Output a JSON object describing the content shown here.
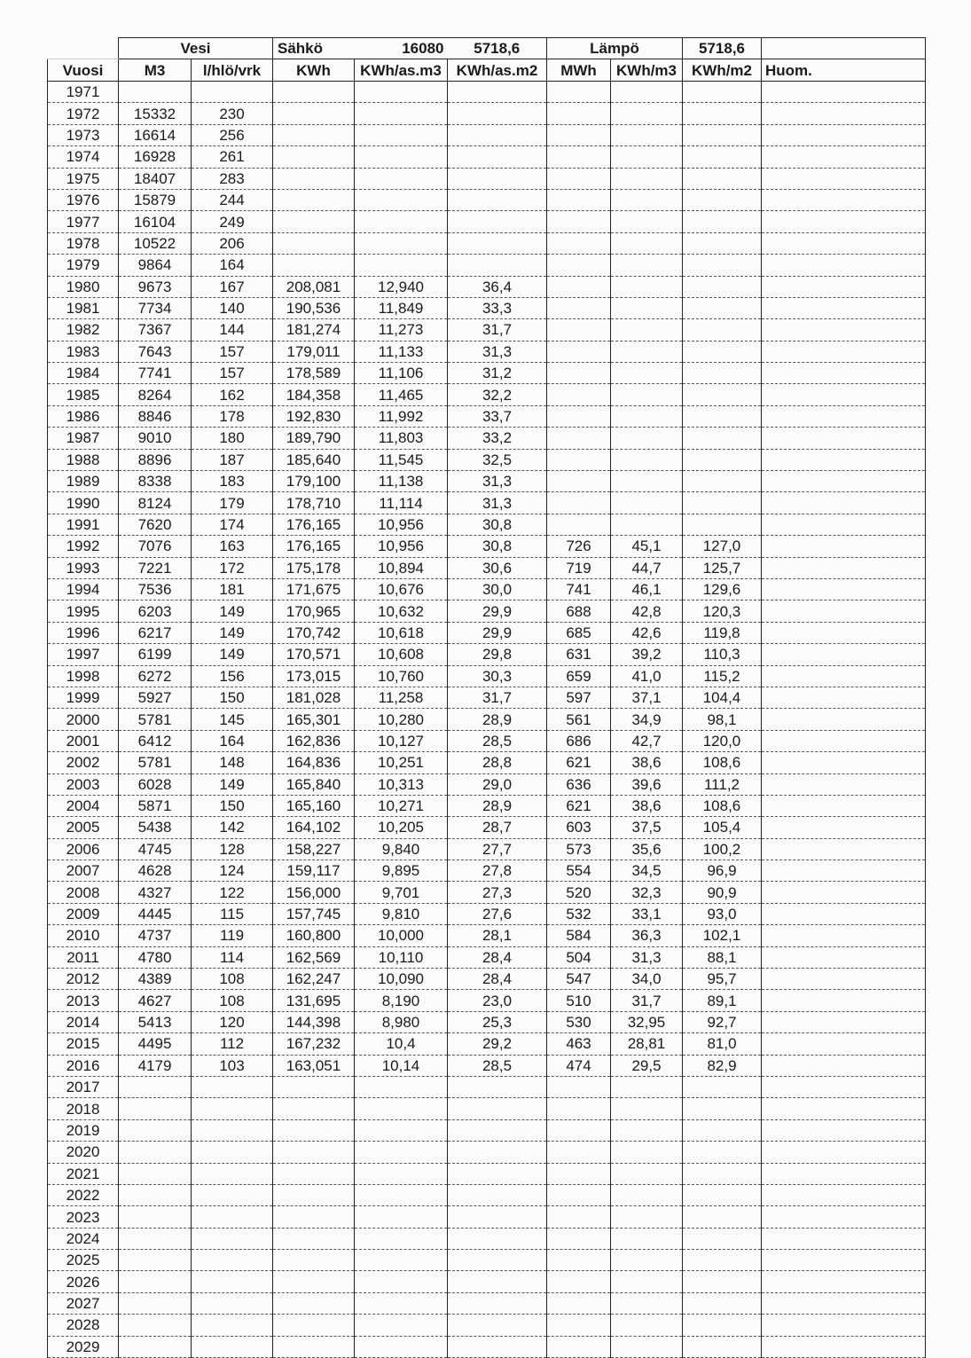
{
  "header_row1": {
    "vesi": "Vesi",
    "sahko": "Sähkö",
    "sahko_v1": "16080",
    "sahko_v2": "5718,6",
    "lampo": "Lämpö",
    "lampo_v": "5718,6"
  },
  "header_row2": [
    "Vuosi",
    "M3",
    "l/hlö/vrk",
    "KWh",
    "KWh/as.m3",
    "KWh/as.m2",
    "MWh",
    "KWh/m3",
    "KWh/m2",
    "Huom."
  ],
  "rows": [
    [
      "1971",
      "",
      "",
      "",
      "",
      "",
      "",
      "",
      "",
      ""
    ],
    [
      "1972",
      "15332",
      "230",
      "",
      "",
      "",
      "",
      "",
      "",
      ""
    ],
    [
      "1973",
      "16614",
      "256",
      "",
      "",
      "",
      "",
      "",
      "",
      ""
    ],
    [
      "1974",
      "16928",
      "261",
      "",
      "",
      "",
      "",
      "",
      "",
      ""
    ],
    [
      "1975",
      "18407",
      "283",
      "",
      "",
      "",
      "",
      "",
      "",
      ""
    ],
    [
      "1976",
      "15879",
      "244",
      "",
      "",
      "",
      "",
      "",
      "",
      ""
    ],
    [
      "1977",
      "16104",
      "249",
      "",
      "",
      "",
      "",
      "",
      "",
      ""
    ],
    [
      "1978",
      "10522",
      "206",
      "",
      "",
      "",
      "",
      "",
      "",
      ""
    ],
    [
      "1979",
      "9864",
      "164",
      "",
      "",
      "",
      "",
      "",
      "",
      ""
    ],
    [
      "1980",
      "9673",
      "167",
      "208,081",
      "12,940",
      "36,4",
      "",
      "",
      "",
      ""
    ],
    [
      "1981",
      "7734",
      "140",
      "190,536",
      "11,849",
      "33,3",
      "",
      "",
      "",
      ""
    ],
    [
      "1982",
      "7367",
      "144",
      "181,274",
      "11,273",
      "31,7",
      "",
      "",
      "",
      ""
    ],
    [
      "1983",
      "7643",
      "157",
      "179,011",
      "11,133",
      "31,3",
      "",
      "",
      "",
      ""
    ],
    [
      "1984",
      "7741",
      "157",
      "178,589",
      "11,106",
      "31,2",
      "",
      "",
      "",
      ""
    ],
    [
      "1985",
      "8264",
      "162",
      "184,358",
      "11,465",
      "32,2",
      "",
      "",
      "",
      ""
    ],
    [
      "1986",
      "8846",
      "178",
      "192,830",
      "11,992",
      "33,7",
      "",
      "",
      "",
      ""
    ],
    [
      "1987",
      "9010",
      "180",
      "189,790",
      "11,803",
      "33,2",
      "",
      "",
      "",
      ""
    ],
    [
      "1988",
      "8896",
      "187",
      "185,640",
      "11,545",
      "32,5",
      "",
      "",
      "",
      ""
    ],
    [
      "1989",
      "8338",
      "183",
      "179,100",
      "11,138",
      "31,3",
      "",
      "",
      "",
      ""
    ],
    [
      "1990",
      "8124",
      "179",
      "178,710",
      "11,114",
      "31,3",
      "",
      "",
      "",
      ""
    ],
    [
      "1991",
      "7620",
      "174",
      "176,165",
      "10,956",
      "30,8",
      "",
      "",
      "",
      ""
    ],
    [
      "1992",
      "7076",
      "163",
      "176,165",
      "10,956",
      "30,8",
      "726",
      "45,1",
      "127,0",
      ""
    ],
    [
      "1993",
      "7221",
      "172",
      "175,178",
      "10,894",
      "30,6",
      "719",
      "44,7",
      "125,7",
      ""
    ],
    [
      "1994",
      "7536",
      "181",
      "171,675",
      "10,676",
      "30,0",
      "741",
      "46,1",
      "129,6",
      ""
    ],
    [
      "1995",
      "6203",
      "149",
      "170,965",
      "10,632",
      "29,9",
      "688",
      "42,8",
      "120,3",
      ""
    ],
    [
      "1996",
      "6217",
      "149",
      "170,742",
      "10,618",
      "29,9",
      "685",
      "42,6",
      "119,8",
      ""
    ],
    [
      "1997",
      "6199",
      "149",
      "170,571",
      "10,608",
      "29,8",
      "631",
      "39,2",
      "110,3",
      ""
    ],
    [
      "1998",
      "6272",
      "156",
      "173,015",
      "10,760",
      "30,3",
      "659",
      "41,0",
      "115,2",
      ""
    ],
    [
      "1999",
      "5927",
      "150",
      "181,028",
      "11,258",
      "31,7",
      "597",
      "37,1",
      "104,4",
      ""
    ],
    [
      "2000",
      "5781",
      "145",
      "165,301",
      "10,280",
      "28,9",
      "561",
      "34,9",
      "98,1",
      ""
    ],
    [
      "2001",
      "6412",
      "164",
      "162,836",
      "10,127",
      "28,5",
      "686",
      "42,7",
      "120,0",
      ""
    ],
    [
      "2002",
      "5781",
      "148",
      "164,836",
      "10,251",
      "28,8",
      "621",
      "38,6",
      "108,6",
      ""
    ],
    [
      "2003",
      "6028",
      "149",
      "165,840",
      "10,313",
      "29,0",
      "636",
      "39,6",
      "111,2",
      ""
    ],
    [
      "2004",
      "5871",
      "150",
      "165,160",
      "10,271",
      "28,9",
      "621",
      "38,6",
      "108,6",
      ""
    ],
    [
      "2005",
      "5438",
      "142",
      "164,102",
      "10,205",
      "28,7",
      "603",
      "37,5",
      "105,4",
      ""
    ],
    [
      "2006",
      "4745",
      "128",
      "158,227",
      "9,840",
      "27,7",
      "573",
      "35,6",
      "100,2",
      ""
    ],
    [
      "2007",
      "4628",
      "124",
      "159,117",
      "9,895",
      "27,8",
      "554",
      "34,5",
      "96,9",
      ""
    ],
    [
      "2008",
      "4327",
      "122",
      "156,000",
      "9,701",
      "27,3",
      "520",
      "32,3",
      "90,9",
      ""
    ],
    [
      "2009",
      "4445",
      "115",
      "157,745",
      "9,810",
      "27,6",
      "532",
      "33,1",
      "93,0",
      ""
    ],
    [
      "2010",
      "4737",
      "119",
      "160,800",
      "10,000",
      "28,1",
      "584",
      "36,3",
      "102,1",
      ""
    ],
    [
      "2011",
      "4780",
      "114",
      "162,569",
      "10,110",
      "28,4",
      "504",
      "31,3",
      "88,1",
      ""
    ],
    [
      "2012",
      "4389",
      "108",
      "162,247",
      "10,090",
      "28,4",
      "547",
      "34,0",
      "95,7",
      ""
    ],
    [
      "2013",
      "4627",
      "108",
      "131,695",
      "8,190",
      "23,0",
      "510",
      "31,7",
      "89,1",
      ""
    ],
    [
      "2014",
      "5413",
      "120",
      "144,398",
      "8,980",
      "25,3",
      "530",
      "32,95",
      "92,7",
      ""
    ],
    [
      "2015",
      "4495",
      "112",
      "167,232",
      "10,4",
      "29,2",
      "463",
      "28,81",
      "81,0",
      ""
    ],
    [
      "2016",
      "4179",
      "103",
      "163,051",
      "10,14",
      "28,5",
      "474",
      "29,5",
      "82,9",
      ""
    ],
    [
      "2017",
      "",
      "",
      "",
      "",
      "",
      "",
      "",
      "",
      ""
    ],
    [
      "2018",
      "",
      "",
      "",
      "",
      "",
      "",
      "",
      "",
      ""
    ],
    [
      "2019",
      "",
      "",
      "",
      "",
      "",
      "",
      "",
      "",
      ""
    ],
    [
      "2020",
      "",
      "",
      "",
      "",
      "",
      "",
      "",
      "",
      ""
    ],
    [
      "2021",
      "",
      "",
      "",
      "",
      "",
      "",
      "",
      "",
      ""
    ],
    [
      "2022",
      "",
      "",
      "",
      "",
      "",
      "",
      "",
      "",
      ""
    ],
    [
      "2023",
      "",
      "",
      "",
      "",
      "",
      "",
      "",
      "",
      ""
    ],
    [
      "2024",
      "",
      "",
      "",
      "",
      "",
      "",
      "",
      "",
      ""
    ],
    [
      "2025",
      "",
      "",
      "",
      "",
      "",
      "",
      "",
      "",
      ""
    ],
    [
      "2026",
      "",
      "",
      "",
      "",
      "",
      "",
      "",
      "",
      ""
    ],
    [
      "2027",
      "",
      "",
      "",
      "",
      "",
      "",
      "",
      "",
      ""
    ],
    [
      "2028",
      "",
      "",
      "",
      "",
      "",
      "",
      "",
      "",
      ""
    ],
    [
      "2029",
      "",
      "",
      "",
      "",
      "",
      "",
      "",
      "",
      ""
    ]
  ]
}
